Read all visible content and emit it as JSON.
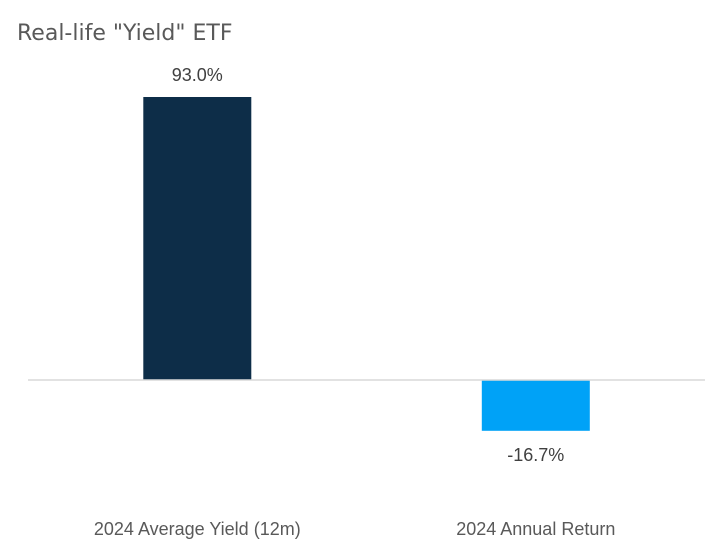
{
  "chart_data": {
    "type": "bar",
    "title": "Real-life \"Yield\" ETF",
    "xlabel": "",
    "ylabel": "",
    "categories": [
      "2024 Average Yield (12m)",
      "2024 Annual Return"
    ],
    "values": [
      93.0,
      -16.7
    ],
    "data_labels": [
      "93.0%",
      "-16.7%"
    ],
    "value_unit": "%",
    "ylim": [
      -30,
      100
    ],
    "grid": false,
    "legend": "none",
    "colors": [
      "#0d2d48",
      "#00a2f7"
    ],
    "axis_color": "#d9d9d9"
  }
}
